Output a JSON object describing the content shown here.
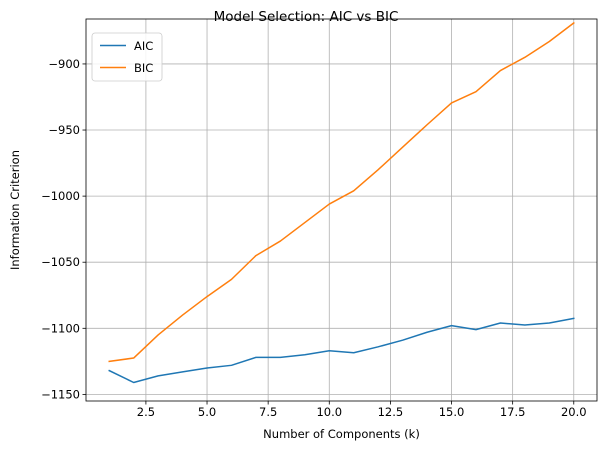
{
  "chart_data": {
    "type": "line",
    "title": "Model Selection: AIC vs BIC",
    "xlabel": "Number of Components (k)",
    "ylabel": "Information Criterion",
    "xlim": [
      0.05,
      20.95
    ],
    "ylim": [
      -1155,
      -866
    ],
    "x_ticks": [
      2.5,
      5.0,
      7.5,
      10.0,
      12.5,
      15.0,
      17.5,
      20.0
    ],
    "x_tick_labels": [
      "2.5",
      "5.0",
      "7.5",
      "10.0",
      "12.5",
      "15.0",
      "17.5",
      "20.0"
    ],
    "y_ticks": [
      -1150,
      -1100,
      -1050,
      -1000,
      -950,
      -900
    ],
    "y_tick_labels": [
      "−1150",
      "−1100",
      "−1050",
      "−1000",
      "−950",
      "−900"
    ],
    "grid": true,
    "legend_position": "top-left",
    "x": [
      1,
      2,
      3,
      4,
      5,
      6,
      7,
      8,
      9,
      10,
      11,
      12,
      13,
      14,
      15,
      16,
      17,
      18,
      19,
      20
    ],
    "series": [
      {
        "name": "AIC",
        "color": "#1f77b4",
        "values": [
          -1132,
          -1141,
          -1136,
          -1133,
          -1130,
          -1128,
          -1122,
          -1122,
          -1120,
          -1117,
          -1118.5,
          -1114,
          -1109,
          -1103,
          -1098,
          -1101,
          -1096,
          -1097.5,
          -1096,
          -1092.5
        ]
      },
      {
        "name": "BIC",
        "color": "#ff7f0e",
        "values": [
          -1125,
          -1122.5,
          -1105,
          -1090,
          -1076,
          -1063,
          -1045,
          -1034,
          -1020,
          -1006,
          -996,
          -980,
          -963,
          -946,
          -929.5,
          -921,
          -905,
          -895,
          -883,
          -869
        ]
      }
    ]
  }
}
